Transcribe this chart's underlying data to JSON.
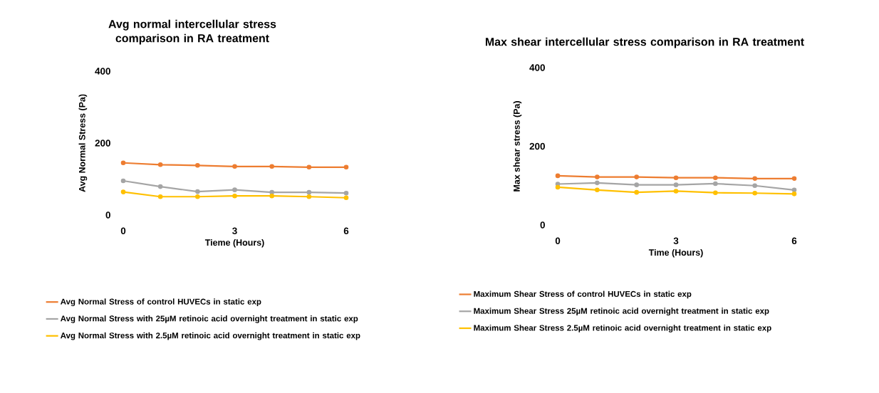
{
  "chart_data": [
    {
      "type": "line",
      "title": "Avg normal intercellular stress comparison in RA treatment",
      "xlabel": "Tieme (Hours)",
      "ylabel": "Avg Normal Stress (Pa)",
      "x": [
        0,
        1,
        2,
        3,
        4,
        5,
        6
      ],
      "xlim": [
        0,
        6
      ],
      "ylim": [
        0,
        400
      ],
      "xticks": [
        0,
        3,
        6
      ],
      "yticks": [
        0,
        200,
        400
      ],
      "legend": "bottom",
      "marker": "circle",
      "line_style": "solid",
      "series": [
        {
          "name": "Avg Normal Stress of control HUVECs in static exp",
          "color": "#ed7d31",
          "values": [
            145,
            140,
            138,
            135,
            135,
            133,
            133
          ]
        },
        {
          "name": "Avg Normal Stress with 25µM retinoic acid overnight treatment in static exp",
          "color": "#a5a5a5",
          "values": [
            95,
            79,
            65,
            70,
            63,
            63,
            61
          ]
        },
        {
          "name": "Avg Normal Stress with 2.5µM retinoic acid overnight treatment in static exp",
          "color": "#ffc000",
          "values": [
            64,
            51,
            51,
            53,
            53,
            51,
            48
          ]
        }
      ]
    },
    {
      "type": "line",
      "title": "Max shear intercellular stress comparison in RA treatment",
      "xlabel": "Time (Hours)",
      "ylabel": "Max shear stress (Pa)",
      "x": [
        0,
        1,
        2,
        3,
        4,
        5,
        6
      ],
      "xlim": [
        0,
        6
      ],
      "ylim": [
        0,
        400
      ],
      "xticks": [
        0,
        3,
        6
      ],
      "yticks": [
        0,
        200,
        400
      ],
      "legend": "bottom",
      "marker": "circle",
      "line_style": "solid",
      "series": [
        {
          "name": "Maximum Shear Stress of control HUVECs in static exp",
          "color": "#ed7d31",
          "values": [
            125,
            122,
            122,
            120,
            120,
            118,
            118
          ]
        },
        {
          "name": "Maximum Shear Stress 25µM retinoic acid overnight treatment in static exp",
          "color": "#a5a5a5",
          "values": [
            104,
            107,
            102,
            102,
            105,
            100,
            89
          ]
        },
        {
          "name": "Maximum Shear Stress 2.5µM retinoic acid overnight treatment in static exp",
          "color": "#ffc000",
          "values": [
            96,
            89,
            83,
            86,
            82,
            81,
            79
          ]
        }
      ]
    }
  ]
}
